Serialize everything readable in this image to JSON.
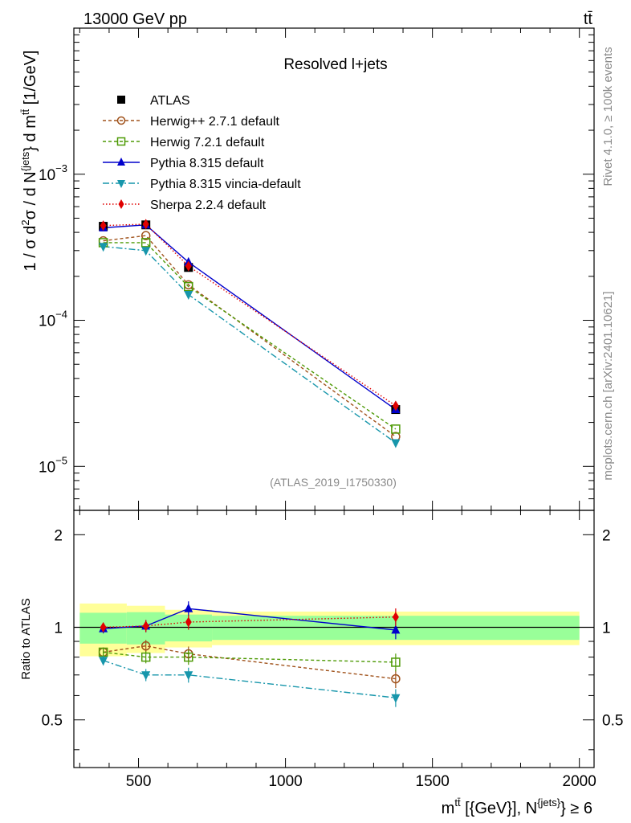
{
  "header": {
    "energy_label": "13000 GeV pp",
    "process_label": "tt̄"
  },
  "side_labels": {
    "rivet": "Rivet 4.1.0, ≥ 100k events",
    "mcplots": "mcplots.cern.ch [arXiv:2401.10621]"
  },
  "chart_data": {
    "type": "line",
    "title": "Resolved l+jets",
    "analysis_tag": "(ATLAS_2019_I1750330)",
    "xlabel": "m^{tt̄} [{GeV}], N^{jets} ≥ 6",
    "xlabel_parts": {
      "main": "m",
      "sup1": "tt̄",
      "mid": " [{GeV}], N",
      "sup2": "{jets}",
      "tail": "} ≥ 6"
    },
    "ylabel": "1 / σ d²σ / d N^{jets} } d m^{tt̄} [1/GeV]",
    "ylabel_parts": {
      "a": "1 / σ d",
      "sup_a": "2",
      "b": "σ / d N",
      "sup_b": "{jets",
      "c": "} d m",
      "sup_c": "tt̄",
      "d": " [1/GeV]"
    },
    "ratio_ylabel": "Ratio to ATLAS",
    "xlim": [
      280,
      2050
    ],
    "ylim_main": [
      5e-06,
      0.01
    ],
    "ylim_ratio": [
      0.35,
      2.4
    ],
    "x_ticks": [
      500,
      1000,
      1500,
      2000
    ],
    "x_tick_labels": [
      "500",
      "1000",
      "1500",
      "2000"
    ],
    "y_ticks_main": [
      1e-05,
      0.0001,
      0.001
    ],
    "y_tick_labels_main": [
      {
        "base": "10",
        "exp": "−5"
      },
      {
        "base": "10",
        "exp": "−4"
      },
      {
        "base": "10",
        "exp": "−3"
      }
    ],
    "y_ticks_ratio": [
      0.5,
      1,
      2
    ],
    "y_tick_labels_ratio": [
      "0.5",
      "1",
      "2"
    ],
    "x": [
      380,
      525,
      670,
      1375
    ],
    "bins": [
      [
        300,
        460
      ],
      [
        460,
        590
      ],
      [
        590,
        750
      ],
      [
        750,
        2000
      ]
    ],
    "data": {
      "name": "ATLAS",
      "values": [
        0.00044,
        0.00045,
        0.00023,
        2.45e-05
      ]
    },
    "band_inner": [
      0.115,
      0.12,
      0.1,
      0.09
    ],
    "band_outer": [
      0.195,
      0.175,
      0.14,
      0.125
    ],
    "series": [
      {
        "name": "Herwig++ 2.7.1 default",
        "color": "#a0521b",
        "dash": "4,3",
        "marker": "circle-open",
        "values": [
          0.00035,
          0.00038,
          0.000175,
          1.6e-05
        ],
        "ratio": [
          0.83,
          0.87,
          0.82,
          0.68
        ]
      },
      {
        "name": "Herwig 7.2.1 default",
        "color": "#4e9a06",
        "dash": "4,3",
        "marker": "square-open",
        "values": [
          0.00034,
          0.00034,
          0.00017,
          1.8e-05
        ],
        "ratio": [
          0.83,
          0.8,
          0.8,
          0.77
        ]
      },
      {
        "name": "Pythia 8.315 default",
        "color": "#0000cc",
        "dash": "",
        "marker": "triangle-up",
        "values": [
          0.00043,
          0.00045,
          0.00025,
          2.45e-05
        ],
        "ratio": [
          0.99,
          1.01,
          1.15,
          0.98
        ]
      },
      {
        "name": "Pythia 8.315 vincia-default",
        "color": "#1796ab",
        "dash": "8,3,2,3",
        "marker": "triangle-down",
        "values": [
          0.00032,
          0.0003,
          0.00015,
          1.45e-05
        ],
        "ratio": [
          0.78,
          0.7,
          0.7,
          0.59
        ]
      },
      {
        "name": "Sherpa 2.2.4 default",
        "color": "#e00000",
        "dash": "1.5,2.5",
        "marker": "diamond",
        "values": [
          0.000445,
          0.000455,
          0.000235,
          2.6e-05
        ],
        "ratio": [
          1.0,
          1.01,
          1.04,
          1.08
        ]
      }
    ],
    "legend_position": "upper-left"
  }
}
